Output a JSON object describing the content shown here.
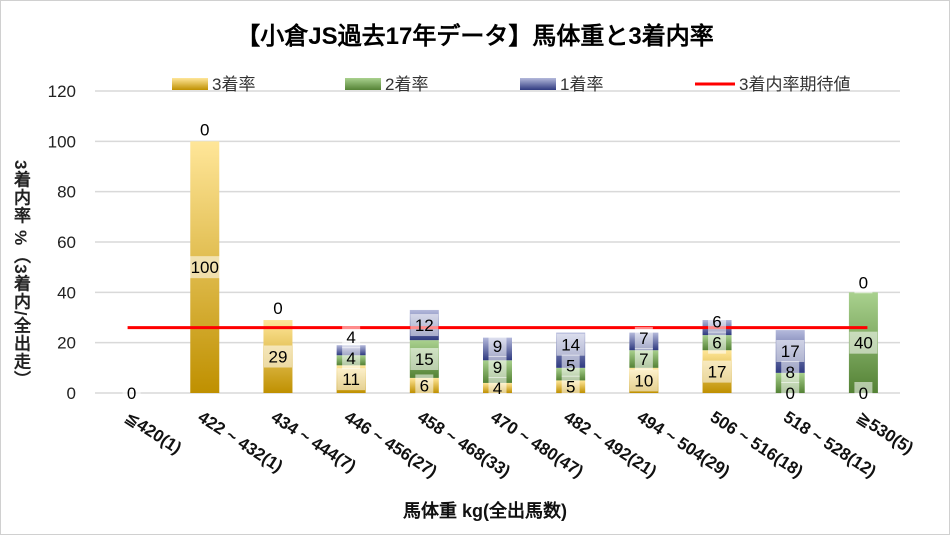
{
  "chart_data": {
    "type": "bar",
    "stacked": true,
    "title": "【小倉JS過去17年データ】馬体重と3着内率",
    "xlabel": "馬体重 kg(全出馬数)",
    "ylabel": "3着内率 %（3着内/全出走）",
    "ylim": [
      0,
      120
    ],
    "yticks": [
      0,
      20,
      40,
      60,
      80,
      100,
      120
    ],
    "grid": true,
    "legend_position": "top",
    "categories": [
      "≦420(1)",
      "422 ~ 432(1)",
      "434 ~ 444(7)",
      "446 ~ 456(27)",
      "458 ~ 468(33)",
      "470 ~ 480(47)",
      "482 ~ 492(21)",
      "494 ~ 504(29)",
      "506 ~ 516(18)",
      "518 ~ 528(12)",
      "≧530(5)"
    ],
    "series": [
      {
        "name": "3着率",
        "color": "#BF9000",
        "light": "#FFE699",
        "values": [
          0,
          100,
          29,
          11,
          6,
          4,
          5,
          10,
          17,
          0,
          0
        ]
      },
      {
        "name": "2着率",
        "color": "#548235",
        "light": "#A9D18E",
        "values": [
          0,
          0,
          0,
          4,
          15,
          9,
          5,
          7,
          6,
          8,
          40
        ]
      },
      {
        "name": "1着率",
        "color": "#2F3A80",
        "light": "#B4B9DB",
        "values": [
          0,
          0,
          0,
          4,
          12,
          9,
          14,
          7,
          6,
          17,
          0
        ]
      }
    ],
    "reference_line": {
      "name": "3着内率期待値",
      "value": 26,
      "color": "#FF0000"
    }
  }
}
